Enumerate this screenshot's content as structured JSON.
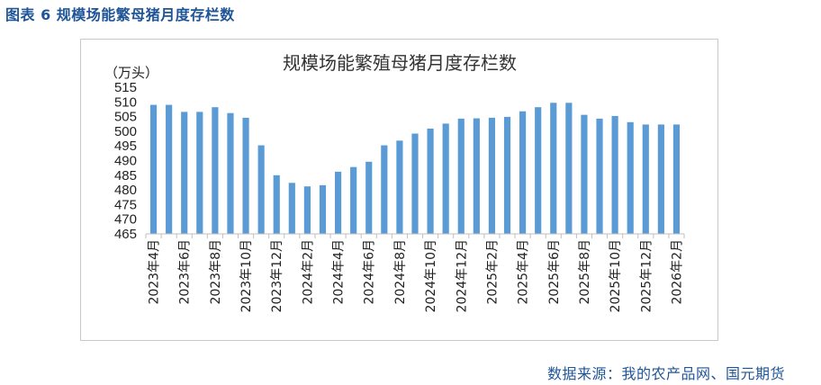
{
  "caption": "图表 6  规模场能繁母猪月度存栏数",
  "source": "数据来源：我的农产品网、国元期货",
  "colors": {
    "bar": "#5b9bd5",
    "caption": "#1f5597"
  },
  "chart_data": {
    "type": "bar",
    "title": "规模场能繁殖母猪月度存栏数",
    "unit": "（万头）",
    "ylim": [
      465,
      515
    ],
    "yticks": [
      465,
      470,
      475,
      480,
      485,
      490,
      495,
      500,
      505,
      510,
      515
    ],
    "grid": false,
    "legend": "none",
    "categories": [
      "2023年4月",
      "2023年5月",
      "2023年6月",
      "2023年7月",
      "2023年8月",
      "2023年9月",
      "2023年10月",
      "2023年11月",
      "2023年12月",
      "2024年1月",
      "2024年2月",
      "2024年3月",
      "2024年4月",
      "2024年5月",
      "2024年6月",
      "2024年7月",
      "2024年8月",
      "2024年9月",
      "2024年10月",
      "2024年11月",
      "2024年12月",
      "2025年1月",
      "2025年2月",
      "2025年3月",
      "2025年4月",
      "2025年5月",
      "2025年6月",
      "2025年7月",
      "2025年8月",
      "2025年9月",
      "2025年10月",
      "2025年11月",
      "2025年12月",
      "2026年1月",
      "2026年2月"
    ],
    "xtick_labels": [
      "2023年4月",
      "2023年6月",
      "2023年8月",
      "2023年10月",
      "2023年12月",
      "2024年2月",
      "2024年4月",
      "2024年6月",
      "2024年8月",
      "2024年10月",
      "2024年12月",
      "2025年2月",
      "2025年4月",
      "2025年6月",
      "2025年8月",
      "2025年10月",
      "2025年12月",
      "2026年2月"
    ],
    "values": [
      509,
      509,
      506.6,
      506.6,
      508.2,
      506.2,
      504.6,
      495.2,
      485,
      482.4,
      481.2,
      481.6,
      486.2,
      487.8,
      489.6,
      495.2,
      496.8,
      499.2,
      500.9,
      502.6,
      504.3,
      504.4,
      504.6,
      504.9,
      506.8,
      508.2,
      509.7,
      509.7,
      505.6,
      504.3,
      505.2,
      503.1,
      502.3,
      502.3,
      502.3
    ]
  }
}
